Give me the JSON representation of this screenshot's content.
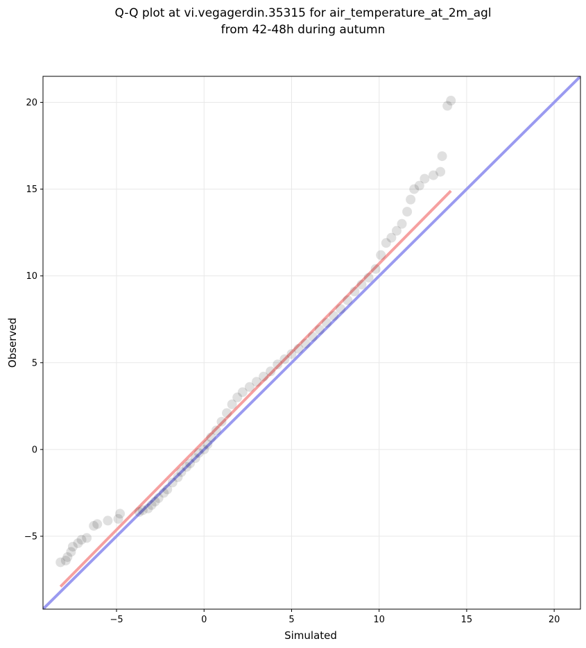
{
  "chart_data": {
    "type": "scatter",
    "title_lines": [
      "Q-Q plot at vi.vegagerdin.35315 for air_temperature_at_2m_agl",
      "from 42-48h during autumn"
    ],
    "xlabel": "Simulated",
    "ylabel": "Observed",
    "xlim": [
      -9.2,
      21.5
    ],
    "ylim": [
      -9.2,
      21.5
    ],
    "xticks": [
      -5,
      0,
      5,
      10,
      15,
      20
    ],
    "yticks": [
      -5,
      0,
      5,
      10,
      15,
      20
    ],
    "xtick_labels": [
      "−5",
      "0",
      "5",
      "10",
      "15",
      "20"
    ],
    "ytick_labels": [
      "−5",
      "0",
      "5",
      "10",
      "15",
      "20"
    ],
    "grid": true,
    "points": {
      "color": "#000000",
      "note_series": "quantile pairs (simulated, observed)",
      "x": [
        -8.2,
        -7.9,
        -7.8,
        -7.6,
        -7.5,
        -7.2,
        -7.0,
        -6.7,
        -6.3,
        -6.1,
        -5.5,
        -4.9,
        -4.8,
        -3.7,
        -3.5,
        -3.2,
        -3.0,
        -2.8,
        -2.6,
        -2.3,
        -2.1,
        -1.8,
        -1.5,
        -1.3,
        -1.0,
        -0.8,
        -0.5,
        -0.3,
        0.0,
        0.2,
        0.4,
        0.7,
        1.0,
        1.3,
        1.6,
        1.9,
        2.2,
        2.6,
        3.0,
        3.4,
        3.8,
        4.2,
        4.6,
        5.0,
        5.4,
        5.8,
        6.2,
        6.6,
        7.0,
        7.4,
        7.8,
        8.2,
        8.6,
        9.0,
        9.4,
        9.8,
        10.1,
        10.4,
        10.7,
        11.0,
        11.3,
        11.6,
        11.8,
        12.0,
        12.3,
        12.6,
        13.1,
        13.5,
        13.6,
        13.9,
        14.1
      ],
      "y": [
        -6.5,
        -6.4,
        -6.2,
        -5.9,
        -5.6,
        -5.4,
        -5.2,
        -5.1,
        -4.4,
        -4.3,
        -4.1,
        -4.0,
        -3.7,
        -3.6,
        -3.5,
        -3.4,
        -3.2,
        -3.0,
        -2.8,
        -2.5,
        -2.3,
        -1.9,
        -1.6,
        -1.3,
        -1.0,
        -0.8,
        -0.5,
        -0.2,
        0.0,
        0.3,
        0.7,
        1.1,
        1.6,
        2.1,
        2.6,
        3.0,
        3.3,
        3.6,
        3.9,
        4.2,
        4.5,
        4.9,
        5.2,
        5.5,
        5.8,
        6.1,
        6.5,
        6.9,
        7.3,
        7.7,
        8.1,
        8.6,
        9.1,
        9.5,
        9.9,
        10.4,
        11.2,
        11.9,
        12.2,
        12.6,
        13.0,
        13.7,
        14.4,
        15.0,
        15.2,
        15.6,
        15.8,
        16.0,
        16.9,
        19.8,
        20.1
      ]
    },
    "reference_lines": [
      {
        "name": "",
        "color": "#9a9af0",
        "x": [
          -9.2,
          21.5
        ],
        "y": [
          -9.2,
          21.5
        ]
      },
      {
        "name": "",
        "color": "#f6a0a0",
        "x": [
          -8.2,
          14.1
        ],
        "y": [
          -7.9,
          14.9
        ]
      }
    ]
  }
}
